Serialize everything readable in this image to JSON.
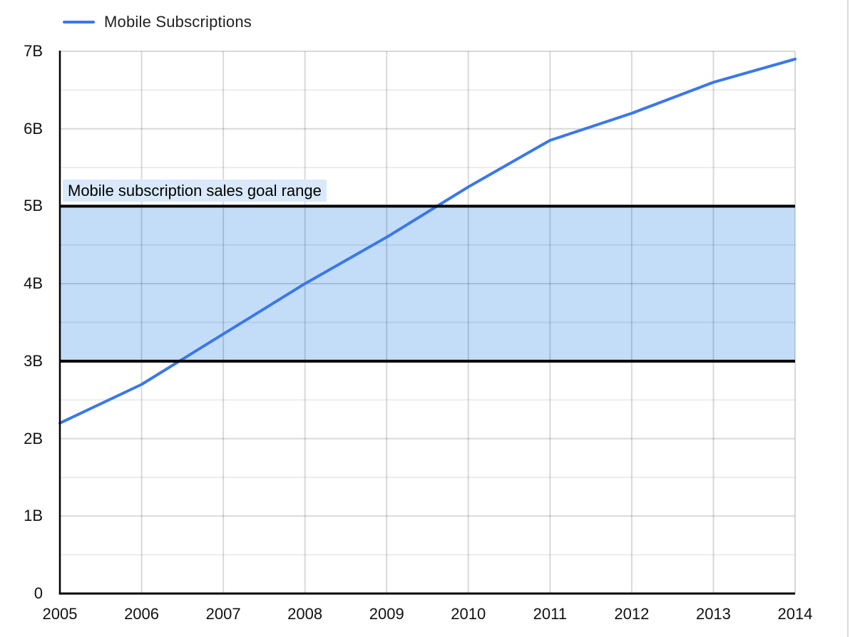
{
  "legend": {
    "series_label": "Mobile Subscriptions",
    "swatch_color": "#3b78e7"
  },
  "chart_data": {
    "type": "line",
    "title": "",
    "x": [
      2005,
      2006,
      2007,
      2008,
      2009,
      2010,
      2011,
      2012,
      2013,
      2014
    ],
    "x_tick_labels": [
      "2005",
      "2006",
      "2007",
      "2008",
      "2009",
      "2010",
      "2011",
      "2012",
      "2013",
      "2014"
    ],
    "series": [
      {
        "name": "Mobile Subscriptions",
        "color": "#3b78e7",
        "unit": "billions",
        "values": [
          2.2,
          2.7,
          3.35,
          4.0,
          4.6,
          5.25,
          5.85,
          6.2,
          6.6,
          6.9
        ]
      }
    ],
    "y_axis": {
      "min": 0,
      "max": 7,
      "major_step": 1,
      "minor_step": 0.5,
      "tick_labels": [
        "0",
        "1B",
        "2B",
        "3B",
        "4B",
        "5B",
        "6B",
        "7B"
      ]
    },
    "goal_band": {
      "label": "Mobile subscription sales goal range",
      "from": 3,
      "to": 5,
      "fill": "#c3ddf9",
      "label_background": "#d9e9fb",
      "border_color": "#000000"
    },
    "grid": {
      "major_color": "#d9d9d9",
      "minor_color": "#ececec",
      "axis_color": "#000000",
      "right_border_color": "#d9d9d9"
    },
    "legend_position": "top-left"
  }
}
